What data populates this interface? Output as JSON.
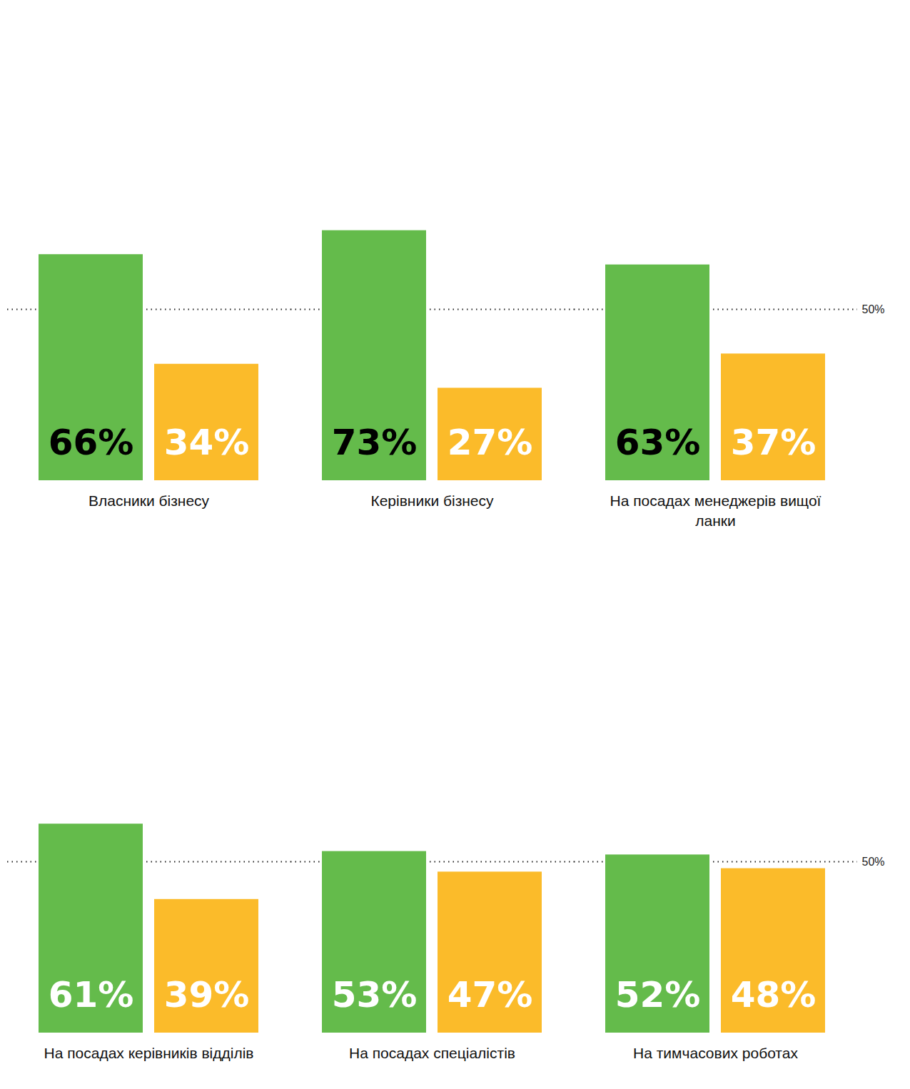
{
  "chart_data": [
    {
      "type": "bar",
      "title": "Власники бізнесу",
      "categories": [
        null,
        null
      ],
      "values": [
        66,
        34
      ],
      "value_labels": [
        "66%",
        "34%"
      ],
      "colors": [
        "#64bb4b",
        "#fbbb2a"
      ],
      "ylim": [
        0,
        100
      ],
      "yticks": [
        {
          "value": 50,
          "label": "50%"
        }
      ],
      "grid": true,
      "data_labels": true,
      "tick_labels": false
    },
    {
      "type": "bar",
      "title": "Керівники бізнесу",
      "categories": [
        null,
        null
      ],
      "values": [
        73,
        27
      ],
      "value_labels": [
        "73%",
        "27%"
      ],
      "colors": [
        "#64bb4b",
        "#fbbb2a"
      ],
      "ylim": [
        0,
        100
      ],
      "yticks": [
        {
          "value": 50,
          "label": "50%"
        }
      ],
      "grid": true,
      "data_labels": true,
      "tick_labels": false
    },
    {
      "type": "bar",
      "title": "На посадах менеджерів вищої ланки",
      "categories": [
        null,
        null
      ],
      "values": [
        63,
        37
      ],
      "value_labels": [
        "63%",
        "37%"
      ],
      "colors": [
        "#64bb4b",
        "#fbbb2a"
      ],
      "ylim": [
        0,
        100
      ],
      "yticks": [
        {
          "value": 50,
          "label": "50%"
        }
      ],
      "grid": true,
      "data_labels": true,
      "tick_labels": "y"
    },
    {
      "type": "bar",
      "title": "На посадах керівників відділів",
      "categories": [
        null,
        null
      ],
      "values": [
        61,
        39
      ],
      "value_labels": [
        "61%",
        "39%"
      ],
      "colors": [
        "#64bb4b",
        "#fbbb2a"
      ],
      "ylim": [
        0,
        100
      ],
      "yticks": [
        {
          "value": 50,
          "label": "50%"
        }
      ],
      "grid": true,
      "data_labels": true,
      "tick_labels": false
    },
    {
      "type": "bar",
      "title": "На посадах спеціалістів",
      "categories": [
        null,
        null
      ],
      "values": [
        53,
        47
      ],
      "value_labels": [
        "53%",
        "47%"
      ],
      "colors": [
        "#64bb4b",
        "#fbbb2a"
      ],
      "ylim": [
        0,
        100
      ],
      "yticks": [
        {
          "value": 50,
          "label": "50%"
        }
      ],
      "grid": true,
      "data_labels": true,
      "tick_labels": false
    },
    {
      "type": "bar",
      "title": "На тимчасових роботах",
      "categories": [
        null,
        null
      ],
      "values": [
        52,
        48
      ],
      "value_labels": [
        "52%",
        "48%"
      ],
      "colors": [
        "#64bb4b",
        "#fbbb2a"
      ],
      "ylim": [
        0,
        100
      ],
      "yticks": [
        {
          "value": 50,
          "label": "50%"
        }
      ],
      "grid": true,
      "data_labels": true,
      "tick_labels": "y"
    }
  ]
}
